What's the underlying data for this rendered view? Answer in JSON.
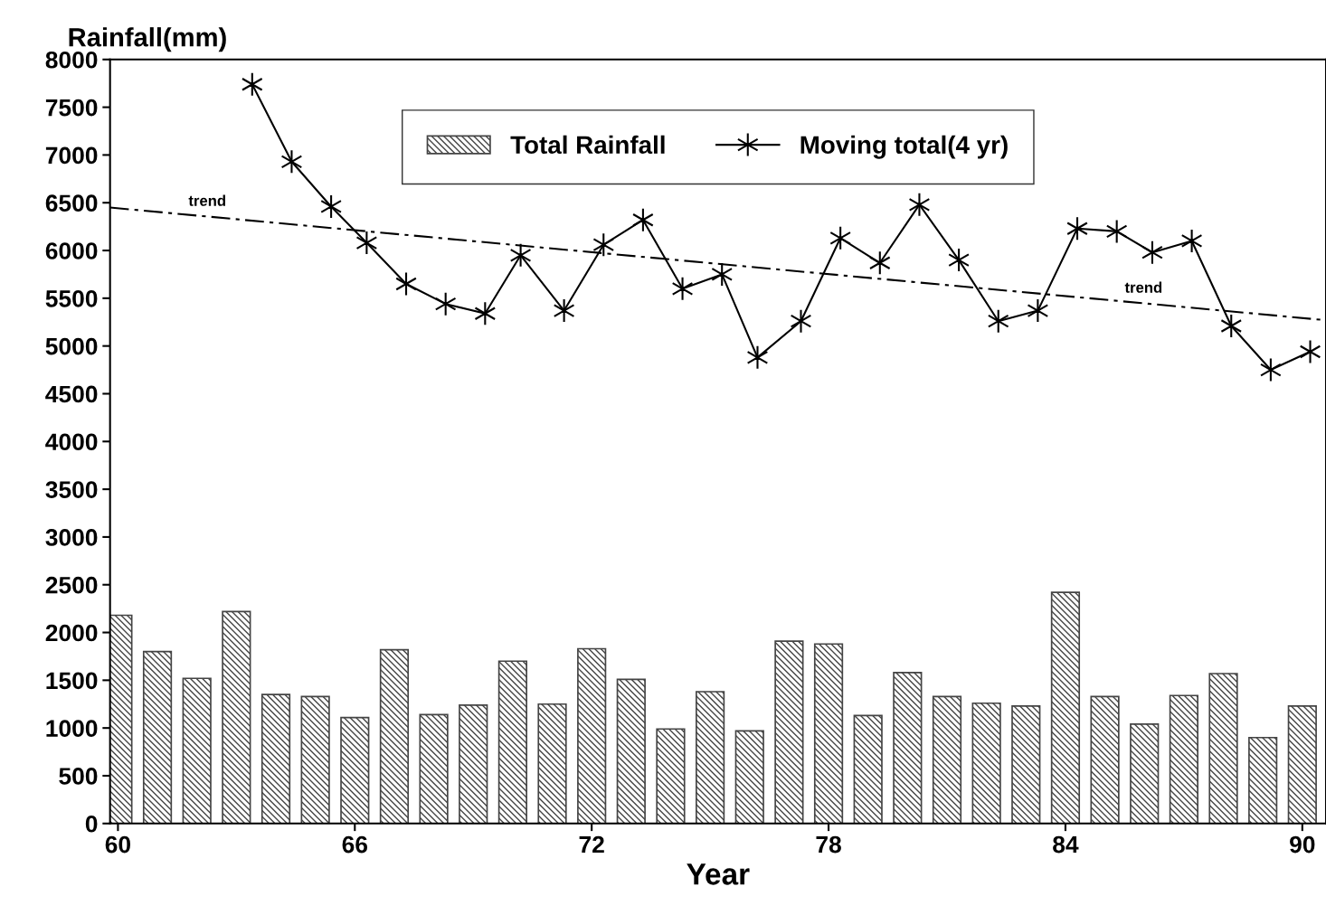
{
  "chart_data": {
    "type": "bar",
    "xlabel": "Year",
    "ylabel": "Rainfall(mm)",
    "xlim": [
      59.8,
      90.6
    ],
    "xticks": [
      60,
      66,
      72,
      78,
      84,
      90
    ],
    "ylim": [
      0,
      8000
    ],
    "yticks": [
      0,
      500,
      1000,
      1500,
      2000,
      2500,
      3000,
      3500,
      4000,
      4500,
      5000,
      5500,
      6000,
      6500,
      7000,
      7500,
      8000
    ],
    "legend": "top",
    "grid": false,
    "series": [
      {
        "name": "Total Rainfall",
        "color": "#444444",
        "x": [
          60,
          61,
          62,
          63,
          64,
          65,
          66,
          67,
          68,
          69,
          70,
          71,
          72,
          73,
          74,
          75,
          76,
          77,
          78,
          79,
          80,
          81,
          82,
          83,
          84,
          85,
          86,
          87,
          88,
          89,
          90
        ],
        "values": [
          2180,
          1800,
          1520,
          2220,
          1350,
          1330,
          1110,
          1820,
          1140,
          1240,
          1700,
          1250,
          1830,
          1510,
          990,
          1380,
          970,
          1910,
          1880,
          1130,
          1580,
          1330,
          1260,
          1230,
          2420,
          1330,
          1040,
          1340,
          1570,
          900,
          1230
        ]
      },
      {
        "type": "line",
        "name": "Moving total(4 yr)",
        "color": "#000000",
        "marker": "cross",
        "line_style": "solid",
        "x": [
          63.4,
          64.4,
          65.4,
          66.3,
          67.3,
          68.3,
          69.3,
          70.2,
          71.3,
          72.3,
          73.3,
          74.3,
          75.3,
          76.2,
          77.3,
          78.3,
          79.3,
          80.3,
          81.3,
          82.3,
          83.3,
          84.3,
          85.3,
          86.2,
          87.2,
          88.2,
          89.2,
          90.2
        ],
        "values": [
          7740,
          6930,
          6460,
          6080,
          5650,
          5440,
          5340,
          5950,
          5370,
          6060,
          6320,
          5600,
          5750,
          4880,
          5260,
          6130,
          5870,
          6480,
          5900,
          5260,
          5370,
          6230,
          6200,
          5980,
          6100,
          5210,
          4750,
          4940
        ]
      },
      {
        "type": "line",
        "color": "#000000",
        "marker": "none",
        "line_style": "dashed",
        "x": [
          59.8,
          90.6
        ],
        "values": [
          6450,
          5270
        ]
      }
    ],
    "annotations": [
      "trend",
      "trend"
    ]
  }
}
